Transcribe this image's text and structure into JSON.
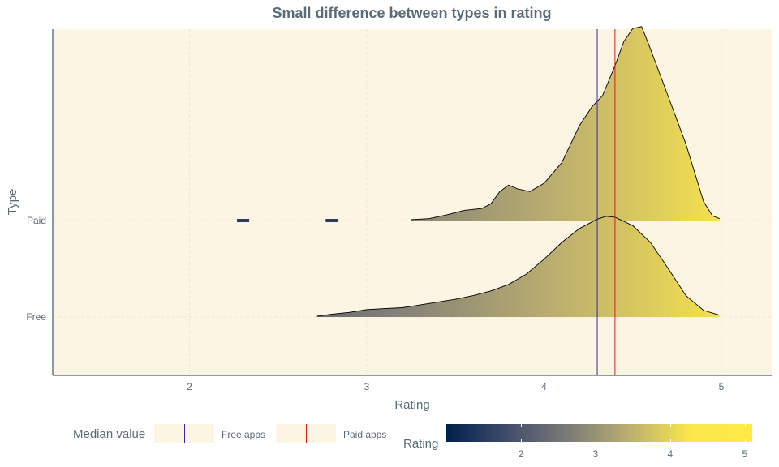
{
  "chart_data": {
    "type": "ridgeline",
    "title": "Small difference between types in rating",
    "xlabel": "Rating",
    "ylabel": "Type",
    "xlim": [
      1.3,
      5.3
    ],
    "x_ticks": [
      2,
      3,
      4,
      5
    ],
    "categories": [
      "Free",
      "Paid"
    ],
    "series": [
      {
        "name": "Free",
        "density": [
          [
            2.72,
            0.01
          ],
          [
            2.8,
            0.03
          ],
          [
            2.9,
            0.05
          ],
          [
            3.0,
            0.08
          ],
          [
            3.1,
            0.09
          ],
          [
            3.2,
            0.1
          ],
          [
            3.3,
            0.13
          ],
          [
            3.4,
            0.16
          ],
          [
            3.5,
            0.19
          ],
          [
            3.6,
            0.23
          ],
          [
            3.7,
            0.28
          ],
          [
            3.8,
            0.35
          ],
          [
            3.9,
            0.46
          ],
          [
            4.0,
            0.62
          ],
          [
            4.1,
            0.8
          ],
          [
            4.2,
            0.95
          ],
          [
            4.3,
            1.05
          ],
          [
            4.35,
            1.08
          ],
          [
            4.4,
            1.07
          ],
          [
            4.5,
            0.98
          ],
          [
            4.6,
            0.8
          ],
          [
            4.7,
            0.52
          ],
          [
            4.8,
            0.23
          ],
          [
            4.9,
            0.07
          ],
          [
            4.99,
            0.02
          ]
        ]
      },
      {
        "name": "Paid",
        "density": [
          [
            3.25,
            0.01
          ],
          [
            3.35,
            0.02
          ],
          [
            3.45,
            0.06
          ],
          [
            3.55,
            0.11
          ],
          [
            3.65,
            0.13
          ],
          [
            3.7,
            0.18
          ],
          [
            3.75,
            0.31
          ],
          [
            3.8,
            0.38
          ],
          [
            3.85,
            0.34
          ],
          [
            3.92,
            0.31
          ],
          [
            4.0,
            0.4
          ],
          [
            4.1,
            0.62
          ],
          [
            4.2,
            1.02
          ],
          [
            4.27,
            1.22
          ],
          [
            4.33,
            1.34
          ],
          [
            4.4,
            1.66
          ],
          [
            4.45,
            1.92
          ],
          [
            4.5,
            2.06
          ],
          [
            4.55,
            2.08
          ],
          [
            4.6,
            1.84
          ],
          [
            4.7,
            1.33
          ],
          [
            4.8,
            0.82
          ],
          [
            4.85,
            0.51
          ],
          [
            4.9,
            0.2
          ],
          [
            4.95,
            0.05
          ],
          [
            4.99,
            0.02
          ]
        ]
      }
    ],
    "paid_outliers": [
      2.3,
      2.8
    ],
    "medians": {
      "free": 4.3,
      "paid": 4.4
    },
    "colorbar": {
      "title": "Rating",
      "min": 1.0,
      "max": 5.1,
      "ticks": [
        2,
        3,
        4,
        5
      ]
    },
    "colors": {
      "panel_bg": "#fcf5e3",
      "free_median": "#2b2bb0",
      "paid_median": "#d02020",
      "outline": "#000000",
      "axis": "#1a3550"
    }
  },
  "legend": {
    "median_title": "Median value",
    "free_label": "Free apps",
    "paid_label": "Paid apps",
    "colorbar_title": "Rating",
    "colorbar_ticks": [
      "2",
      "3",
      "4",
      "5"
    ]
  }
}
